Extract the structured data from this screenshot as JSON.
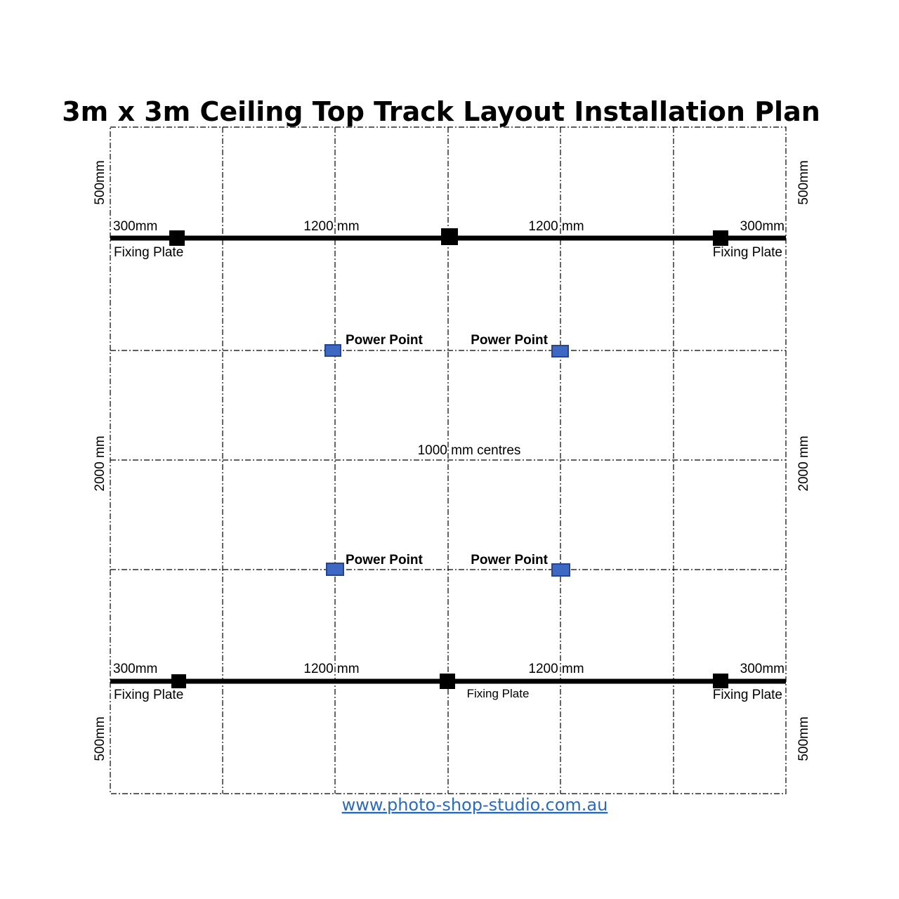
{
  "title": "3m x 3m Ceiling Top Track Layout Installation Plan",
  "dimensions": {
    "top_left": "500mm",
    "top_right": "500mm",
    "middle_left": "2000 mm",
    "middle_right": "2000 mm",
    "bottom_left": "500mm",
    "bottom_right": "500mm"
  },
  "top_track": {
    "left_offset": "300mm",
    "span_left": "1200 mm",
    "span_right": "1200 mm",
    "right_offset": "300mm",
    "left_plate_label": "Fixing Plate",
    "right_plate_label": "Fixing Plate"
  },
  "bottom_track": {
    "left_offset": "300mm",
    "span_left": "1200 mm",
    "span_right": "1200 mm",
    "right_offset": "300mm",
    "left_plate_label": "Fixing Plate",
    "center_plate_label": "Fixing Plate",
    "right_plate_label": "Fixing Plate"
  },
  "power_points": {
    "upper_left": "Power Point",
    "upper_right": "Power Point",
    "lower_left": "Power Point",
    "lower_right": "Power Point"
  },
  "centres_label": "1000 mm centres",
  "colors": {
    "power_point": "#3d68c4",
    "link": "#2a6bbf"
  },
  "footer_link": "www.photo-shop-studio.com.au"
}
